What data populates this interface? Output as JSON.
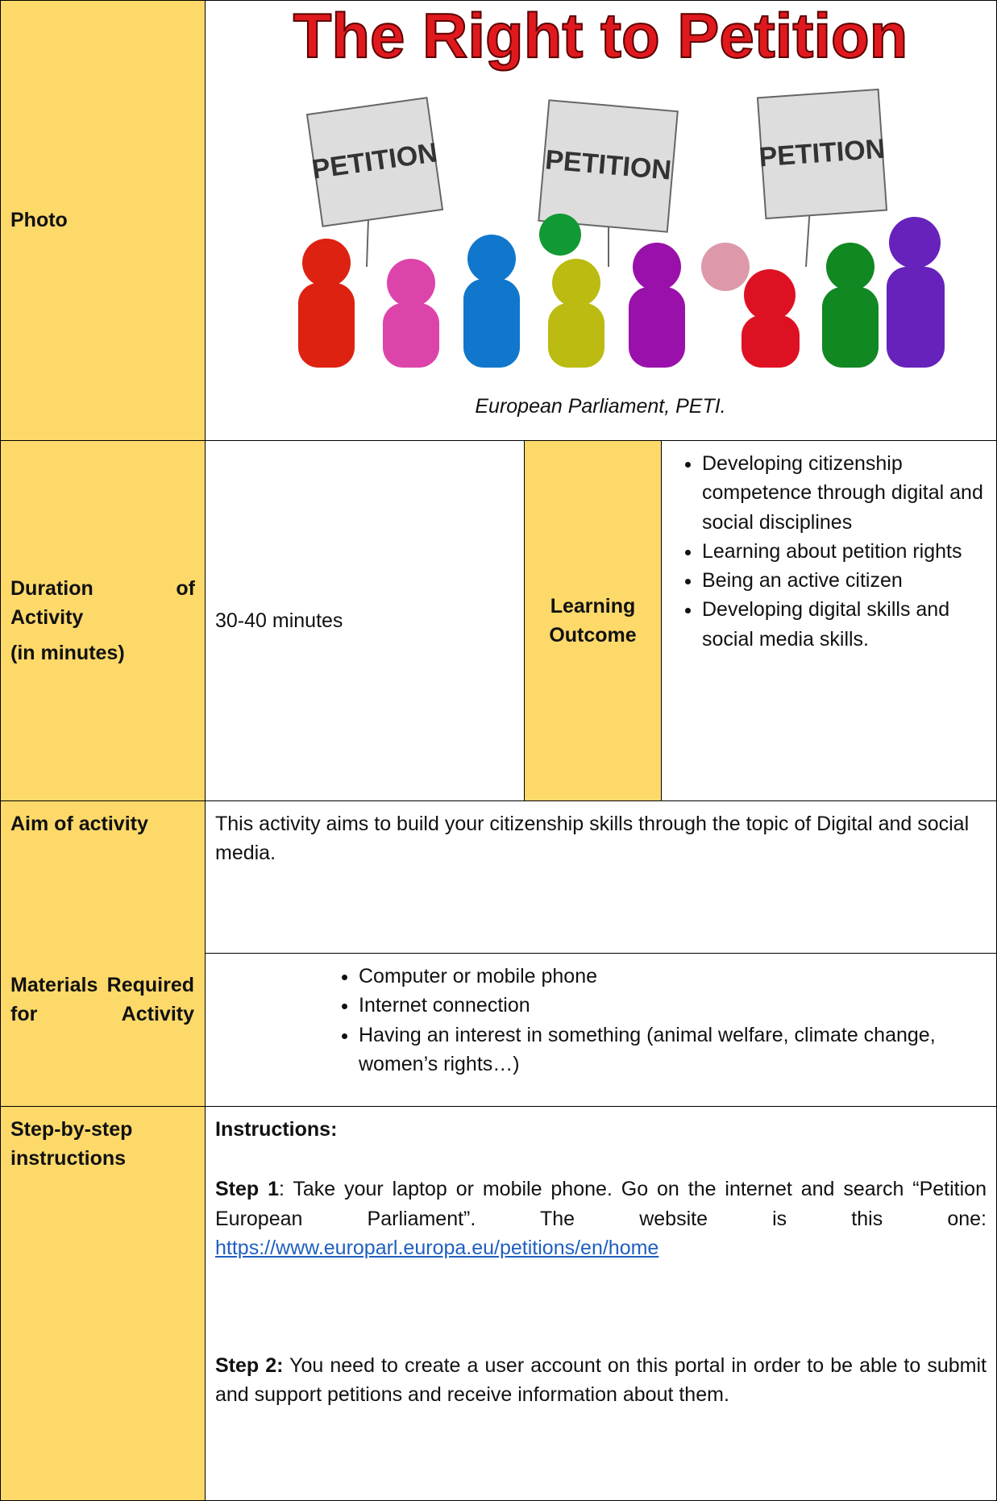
{
  "photo": {
    "label": "Photo",
    "image_title": "The Right to Petition",
    "signs": [
      "PETITION",
      "PETITION",
      "PETITION"
    ],
    "caption": "European Parliament, PETI."
  },
  "duration": {
    "label": "Duration of Activity",
    "sublabel": "(in minutes)",
    "value": "30-40 minutes"
  },
  "learning_outcome": {
    "label": "Learning Outcome",
    "items": [
      "Developing citizenship competence through digital and social disciplines",
      "Learning about petition rights",
      "Being an active citizen",
      "Developing digital skills and social media skills."
    ]
  },
  "aim": {
    "label": "Aim of activity",
    "text": "This activity aims to build your citizenship skills through the topic of Digital and social media."
  },
  "materials": {
    "label": "Materials Required for Activity",
    "items": [
      "Computer or mobile phone",
      "Internet connection",
      "Having an interest in something (animal welfare, climate change, women’s rights…)"
    ]
  },
  "steps": {
    "label": "Step-by-step instructions",
    "heading": "Instructions:",
    "items": [
      {
        "label": "Step 1",
        "text": ": Take your laptop or mobile phone. Go on the internet and search “Petition European Parliament”. The website is this one:",
        "link": "https://www.europarl.europa.eu/petitions/en/home"
      },
      {
        "label": "Step 2:",
        "text": " You need to create a user account on this portal in order to be able to submit and support petitions and receive information about them."
      }
    ]
  }
}
